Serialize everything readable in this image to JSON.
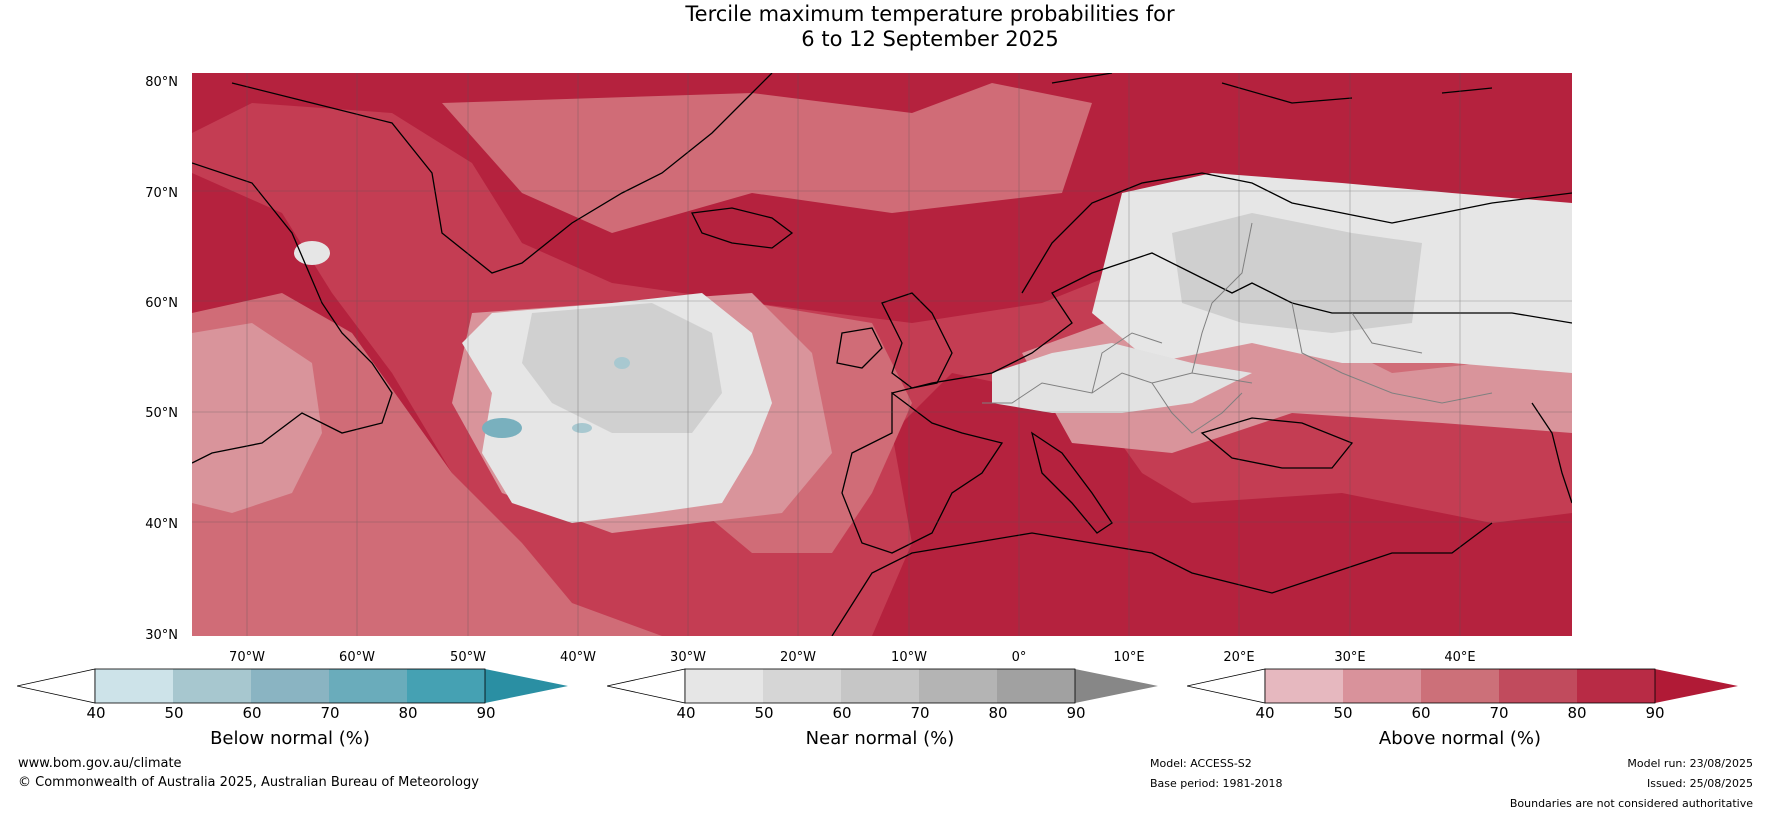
{
  "title": {
    "line1": "Tercile maximum temperature probabilities for",
    "line2": "6 to 12 September 2025"
  },
  "map": {
    "lat_labels": [
      "80°N",
      "70°N",
      "60°N",
      "50°N",
      "40°N",
      "30°N"
    ],
    "lon_labels": [
      "70°W",
      "60°W",
      "50°W",
      "40°W",
      "30°W",
      "20°W",
      "10°W",
      "0°",
      "10°E",
      "20°E",
      "30°E",
      "40°E"
    ],
    "colors": {
      "above_90": "#b5223e",
      "above_80": "#c43d53",
      "above_70": "#d06c77",
      "above_60": "#d9949b",
      "above_50": "#e6b8bd",
      "near_60": "#c8c8c8",
      "near_50": "#d9d9d9",
      "near_40": "#e6e6e6",
      "below_50": "#a8c8d0",
      "below_60": "#79b0be",
      "land_outline": "#000000",
      "border": "#808080",
      "grid": "#555555"
    }
  },
  "colorbars": {
    "below": {
      "title": "Below normal (%)",
      "ticks": [
        "40",
        "50",
        "60",
        "70",
        "80",
        "90"
      ],
      "colors": [
        "#ffffff",
        "#cde3e9",
        "#a7c7cf",
        "#8ab4c2",
        "#6aacbb",
        "#45a1b3",
        "#2a8fa3"
      ]
    },
    "near": {
      "title": "Near normal (%)",
      "ticks": [
        "40",
        "50",
        "60",
        "70",
        "80",
        "90"
      ],
      "colors": [
        "#ffffff",
        "#e6e6e6",
        "#d6d6d6",
        "#c6c6c6",
        "#b4b4b4",
        "#a1a1a1",
        "#878787"
      ]
    },
    "above": {
      "title": "Above normal (%)",
      "ticks": [
        "40",
        "50",
        "60",
        "70",
        "80",
        "90"
      ],
      "colors": [
        "#ffffff",
        "#e6b8bf",
        "#d9929b",
        "#cc7079",
        "#c14b5d",
        "#b82b45",
        "#b11a36"
      ]
    }
  },
  "footer": {
    "website": "www.bom.gov.au/climate",
    "copyright": "© Commonwealth of Australia 2025, Australian Bureau of Meteorology",
    "model": "Model: ACCESS-S2",
    "base_period": "Base period: 1981-2018",
    "model_run": "Model run: 23/08/2025",
    "issued": "Issued: 25/08/2025",
    "disclaimer": "Boundaries are not considered authoritative"
  }
}
